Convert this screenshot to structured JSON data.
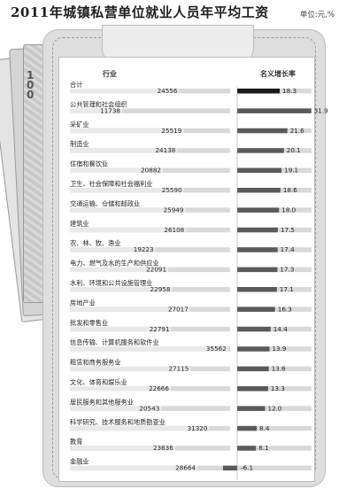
{
  "title": "2011年城镇私营单位就业人员年平均工资",
  "unit": "单位:元,%",
  "note_number": "100",
  "chart_data": {
    "type": "bar",
    "header_industry": "行业",
    "header_growth": "名义增长率",
    "categories": [
      "合计",
      "公共管理和社会组织",
      "采矿业",
      "制造业",
      "住宿和餐饮业",
      "卫生、社会保障和社会福利业",
      "交通运输、仓储和邮政业",
      "建筑业",
      "农、林、牧、渔业",
      "电力、燃气及水的生产和供应业",
      "水利、环境和公共设施管理业",
      "房地产业",
      "批发和零售业",
      "信息传输、计算机服务和软件业",
      "租赁和商务服务业",
      "文化、体育和娱乐业",
      "居民服务和其他服务业",
      "科学研究、技术服务和地质勘查业",
      "教育",
      "金融业"
    ],
    "wage_labels": [
      "24556",
      "11738",
      "25519",
      "24138",
      "20882",
      "25590",
      "25949",
      "26108",
      "19223",
      "22091",
      "22958",
      "27017",
      "22791",
      "35562",
      "27115",
      "22666",
      "20543",
      "31320",
      "23636",
      "28664"
    ],
    "growth_labels": [
      "18.3",
      "31.9",
      "21.6",
      "20.1",
      "19.1",
      "18.6",
      "18.0",
      "17.5",
      "17.4",
      "17.3",
      "17.1",
      "16.3",
      "14.4",
      "13.9",
      "13.6",
      "13.3",
      "12.0",
      "8.4",
      "8.1",
      "-6.1"
    ],
    "series": [
      {
        "name": "平均工资",
        "values": [
          24556,
          11738,
          25519,
          24138,
          20882,
          25590,
          25949,
          26108,
          19223,
          22091,
          22958,
          27017,
          22791,
          35562,
          27115,
          22666,
          20543,
          31320,
          23636,
          28664
        ]
      },
      {
        "name": "名义增长率",
        "values": [
          18.3,
          31.9,
          21.6,
          20.1,
          19.1,
          18.6,
          18.0,
          17.5,
          17.4,
          17.3,
          17.1,
          16.3,
          14.4,
          13.9,
          13.6,
          13.3,
          12.0,
          8.4,
          8.1,
          -6.1
        ]
      }
    ],
    "colors": {
      "total": "#1a1a1a",
      "bar": "#5a5a5a",
      "track": "#d9d9d9",
      "wallet": "#dedede"
    }
  }
}
